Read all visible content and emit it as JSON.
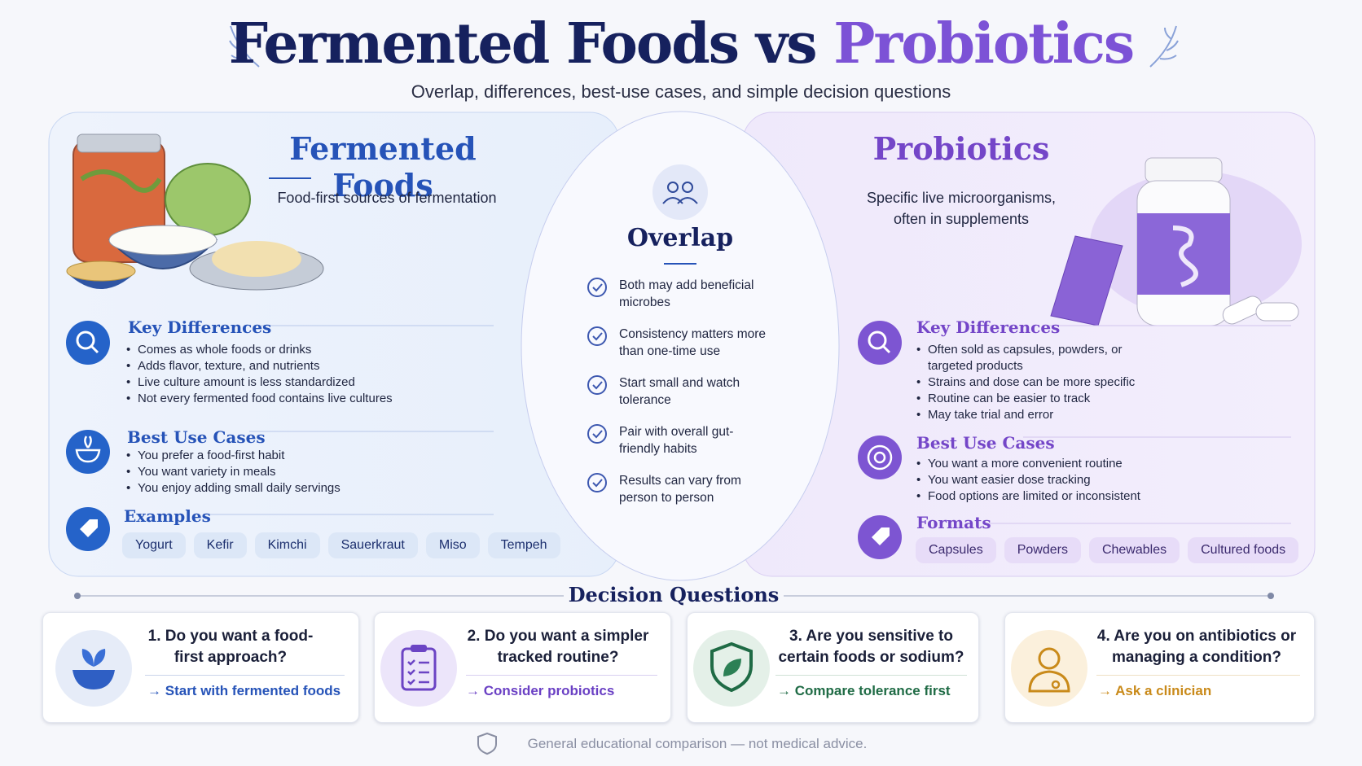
{
  "header": {
    "title_part1": "Fermented Foods vs",
    "title_part2": "Probiotics",
    "subtitle": "Overlap, differences, best-use cases, and simple decision questions"
  },
  "fermented_foods": {
    "title": "Fermented Foods",
    "subtitle": "Food-first sources of fermentation",
    "key_differences": {
      "heading": "Key Differences",
      "items": [
        "Comes as whole foods or drinks",
        "Adds flavor, texture, and nutrients",
        "Live culture amount is less standardized",
        "Not every fermented food contains live cultures"
      ]
    },
    "best_use_cases": {
      "heading": "Best Use Cases",
      "items": [
        "You prefer a food-first habit",
        "You want variety in meals",
        "You enjoy adding small daily servings"
      ]
    },
    "examples": {
      "heading": "Examples",
      "items": [
        "Yogurt",
        "Kefir",
        "Kimchi",
        "Sauerkraut",
        "Miso",
        "Tempeh"
      ]
    }
  },
  "overlap": {
    "title": "Overlap",
    "items": [
      "Both may add beneficial microbes",
      "Consistency matters more than one-time use",
      "Start small and watch tolerance",
      "Pair with overall gut-friendly habits",
      "Results can vary from person to person"
    ]
  },
  "probiotics": {
    "title": "Probiotics",
    "subtitle": "Specific live microorganisms, often in supplements",
    "key_differences": {
      "heading": "Key Differences",
      "items": [
        "Often sold as capsules, powders, or targeted products",
        "Strains and dose can be more specific",
        "Routine can be easier to track",
        "May take trial and error"
      ]
    },
    "best_use_cases": {
      "heading": "Best Use Cases",
      "items": [
        "You want a more convenient routine",
        "You want easier dose tracking",
        "Food options are limited or inconsistent"
      ]
    },
    "formats": {
      "heading": "Formats",
      "items": [
        "Capsules",
        "Powders",
        "Chewables",
        "Cultured foods"
      ]
    }
  },
  "decision_questions": {
    "heading": "Decision Questions",
    "cards": [
      {
        "question": "1. Do you want a food-first approach?",
        "action": "Start with fermented foods"
      },
      {
        "question": "2. Do you want a simpler tracked routine?",
        "action": "Consider probiotics"
      },
      {
        "question": "3. Are you sensitive to certain foods or sodium?",
        "action": "Compare tolerance first"
      },
      {
        "question": "4. Are you on antibiotics or managing a condition?",
        "action": "Ask a clinician"
      }
    ]
  },
  "footer": "General educational comparison — not medical advice."
}
